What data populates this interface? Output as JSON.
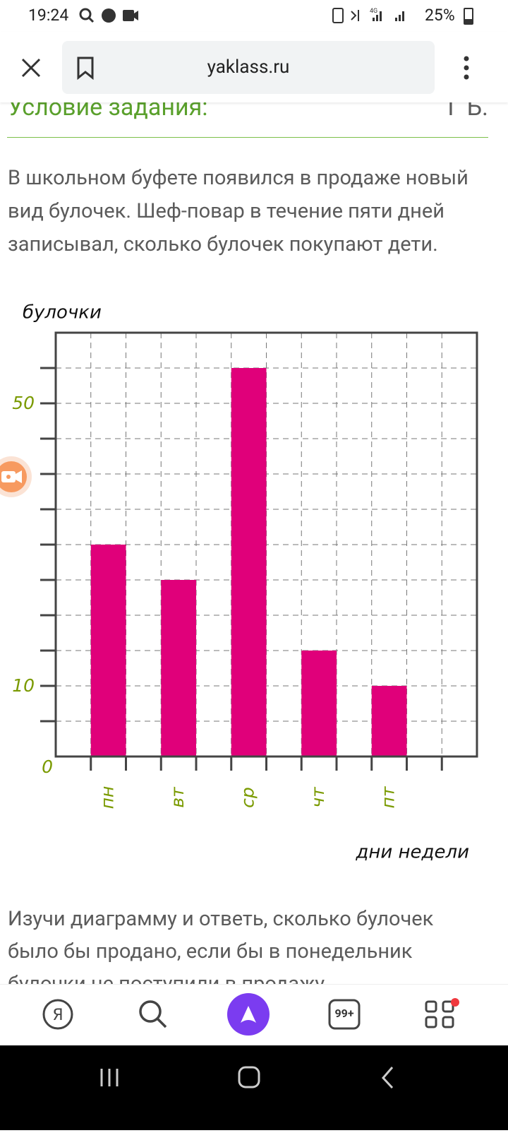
{
  "status_bar": {
    "time": "19:24",
    "battery": "25%"
  },
  "browser": {
    "url": "yaklass.ru"
  },
  "task": {
    "heading": "Условие задания:",
    "heading_right": "Г Ь.",
    "text_lines": [
      "В школьном буфете появился в продаже новый",
      "вид булочек. Шеф-повар в течение пяти дней",
      "записывал, сколько булочек покупают дети."
    ],
    "question_lines": [
      "Изучи диаграмму и ответь, сколько булочек",
      "было бы продано, если бы в понедельник",
      "булочки не поступили в продажу."
    ]
  },
  "chart_data": {
    "type": "bar",
    "y_label": "булочки",
    "x_label": "дни недели",
    "categories": [
      "пн",
      "вт",
      "ср",
      "чт",
      "пт"
    ],
    "values": [
      30,
      25,
      55,
      15,
      10
    ],
    "color": "#e0007a",
    "ylim": [
      0,
      60
    ],
    "yticks": [
      0,
      10,
      50
    ],
    "minor_yticks": [
      5,
      15,
      20,
      25,
      30,
      35,
      40,
      45,
      55
    ],
    "grid": true
  },
  "bottom_nav": {
    "badge": "99+"
  }
}
